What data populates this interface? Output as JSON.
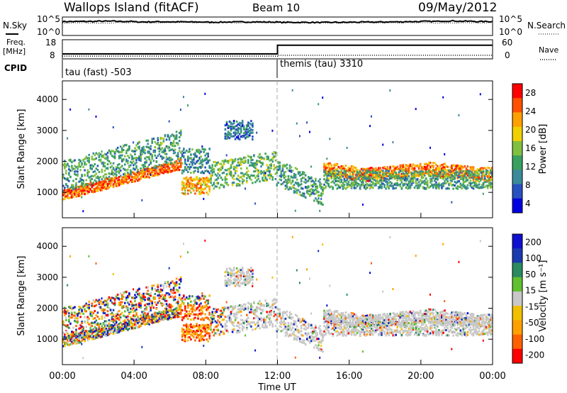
{
  "header": {
    "station": "Wallops Island (fitACF)",
    "beam": "Beam 10",
    "date": "09/May/2012"
  },
  "side_labels": {
    "nsky": "N.Sky",
    "nsearch": "N.Search",
    "freq": "Freq.",
    "freq_unit": "[MHz]",
    "nave": "Nave",
    "cpid": "CPID"
  },
  "chart_data": [
    {
      "type": "line",
      "panel": "noise",
      "series": [
        {
          "name": "N.Sky",
          "style": "solid",
          "note": "log scale 10^0..10^5, nearly constant near 10^4"
        },
        {
          "name": "N.Search",
          "style": "dotted"
        }
      ],
      "left_ticks": [
        "10^5",
        "10^0"
      ],
      "right_ticks": [
        "10^5",
        "10^0"
      ],
      "ylim": [
        0,
        5
      ],
      "x": [
        "00:00",
        "04:00",
        "08:00",
        "12:00",
        "16:00",
        "20:00",
        "00:00"
      ],
      "nsky_log_values": [
        4.0,
        4.05,
        4.1,
        4.05,
        3.9,
        3.95,
        3.9,
        3.85,
        3.8,
        3.85,
        3.9,
        3.85,
        3.75,
        3.75,
        3.7,
        3.75,
        3.8,
        3.85,
        3.9,
        4.0,
        4.05,
        4.2,
        4.1,
        4.0
      ]
    },
    {
      "type": "line",
      "panel": "freq_nave",
      "left_ticks": [
        "18",
        "8"
      ],
      "right_ticks": [
        "60",
        "0"
      ],
      "freq_lim": [
        8,
        18
      ],
      "nave_lim": [
        0,
        60
      ],
      "freq_mhz": [
        {
          "from": "00:00",
          "to": "12:00",
          "value": 10.2
        },
        {
          "from": "12:00",
          "to": "24:00",
          "value": 15.5
        }
      ],
      "nave": [
        {
          "from": "00:00",
          "to": "12:00",
          "value": 5
        },
        {
          "from": "12:00",
          "to": "24:00",
          "value": 8
        }
      ]
    },
    {
      "type": "heatmap",
      "panel": "power",
      "ylabel": "Slant Range [km]",
      "yticks": [
        1000,
        2000,
        3000,
        4000
      ],
      "ylim": [
        180,
        4600
      ],
      "xlim_hours": [
        0,
        24
      ],
      "colorbar_label": "Power [dB]",
      "colorbar_ticks": [
        "28",
        "24",
        "20",
        "16",
        "12",
        "8",
        "4"
      ],
      "colorbar_range": [
        0,
        32
      ]
    },
    {
      "type": "heatmap",
      "panel": "velocity",
      "ylabel": "Slant Range [km]",
      "yticks": [
        1000,
        2000,
        3000,
        4000
      ],
      "ylim": [
        180,
        4600
      ],
      "xlim_hours": [
        0,
        24
      ],
      "colorbar_label": "Velocity [m s⁻¹]",
      "colorbar_ticks": [
        "200",
        "100",
        "50",
        "15",
        "-15",
        "-50",
        "-100",
        "-200"
      ],
      "xlabel": "Time UT",
      "xticks": [
        "00:00",
        "04:00",
        "08:00",
        "12:00",
        "16:00",
        "20:00",
        "00:00"
      ]
    }
  ],
  "cpid_segments": [
    {
      "label": "tau (fast) -503",
      "start_hour": 0
    },
    {
      "label": "themis (tau) 3310",
      "start_hour": 12
    }
  ],
  "colors": {
    "power": [
      "#0000e0",
      "#2850c0",
      "#3a8a9a",
      "#3aa060",
      "#80c040",
      "#f0d000",
      "#ffa000",
      "#ff5000",
      "#ff0000"
    ],
    "velocity": [
      "#ff0000",
      "#ff6000",
      "#ffa000",
      "#f0c000",
      "#c8c8c8",
      "#60c030",
      "#2a8a60",
      "#1a3ab0",
      "#1010d0"
    ],
    "gray_ground": "#c8c8c8"
  }
}
